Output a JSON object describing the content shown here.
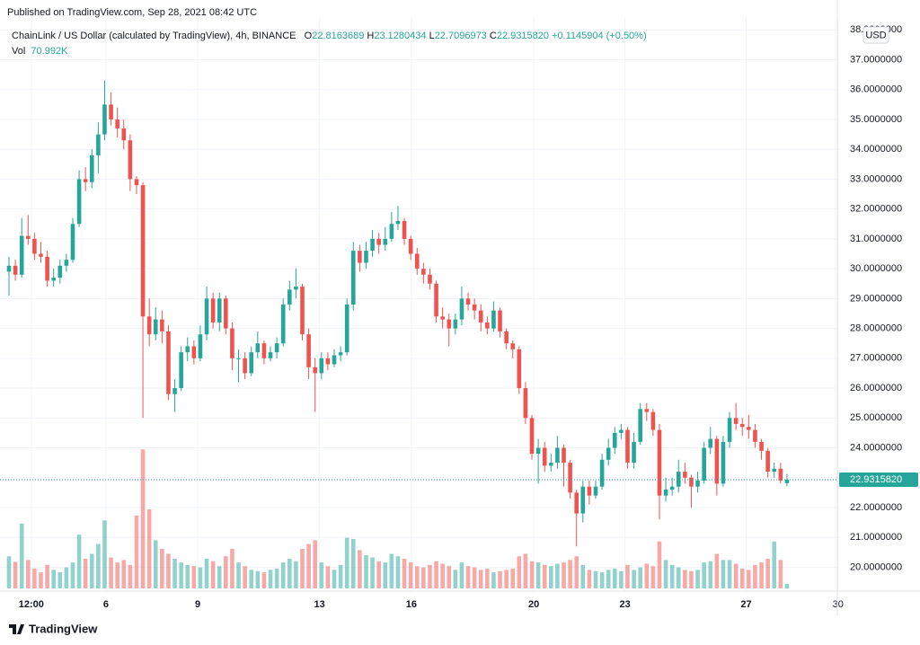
{
  "published": "Published on TradingView.com, Sep 28, 2021 08:42 UTC",
  "brand": "TradingView",
  "chart_data": {
    "type": "candlestick",
    "title": "ChainLink / US Dollar (calculated by TradingView), 4h, BINANCE",
    "ohlc_letters": [
      "O",
      "H",
      "L",
      "C"
    ],
    "close_label": "22.9315820",
    "change": "+0.1145904 (+0.50%)",
    "volume_title": "Vol",
    "volume_label": "70.992K",
    "currency": "USD",
    "up_color": "#26a69a",
    "down_color": "#ef5350",
    "grid": true,
    "open": [
      29.9,
      30.1,
      29.8,
      31.1,
      31.0,
      30.5,
      30.4,
      29.6,
      29.7,
      30.1,
      30.3,
      31.5,
      33.0,
      32.9,
      33.8,
      34.5,
      35.5,
      35.0,
      34.7,
      34.3,
      33.0,
      32.8,
      28.4,
      27.8,
      28.3,
      27.9,
      25.8,
      26.0,
      27.2,
      27.4,
      27.0,
      27.8,
      29.0,
      28.2,
      29.0,
      28.0,
      27.0,
      27.0,
      26.5,
      27.2,
      27.5,
      27.0,
      27.2,
      27.5,
      28.8,
      29.3,
      29.4,
      27.8,
      26.7,
      26.5,
      27.0,
      26.8,
      27.1,
      27.2,
      28.8,
      30.6,
      30.2,
      30.6,
      31.0,
      30.8,
      31.0,
      31.5,
      31.6,
      31.0,
      30.5,
      30.0,
      29.8,
      29.5,
      28.4,
      28.3,
      28.0,
      28.3,
      29.0,
      28.8,
      28.6,
      28.2,
      28.0,
      28.6,
      27.9,
      27.5,
      27.3,
      26.0,
      25.0,
      23.8,
      24.0,
      23.4,
      23.5,
      24.0,
      23.5,
      22.5,
      21.8,
      22.7,
      22.4,
      22.7,
      23.6,
      24.0,
      24.5,
      24.6,
      23.5,
      24.2,
      25.3,
      25.2,
      24.6,
      22.4,
      22.6,
      22.7,
      23.2,
      23.0,
      22.7,
      22.9,
      24.0,
      24.3,
      22.8,
      24.2,
      25.0,
      24.8,
      24.7,
      24.6,
      24.2,
      23.9,
      23.2,
      23.3,
      22.8163689
    ],
    "high": [
      30.4,
      30.3,
      31.7,
      31.8,
      31.2,
      30.9,
      30.6,
      30.0,
      30.3,
      30.5,
      31.7,
      33.3,
      33.4,
      34.0,
      34.9,
      36.3,
      35.9,
      35.4,
      35.0,
      34.5,
      33.1,
      32.9,
      29.0,
      28.7,
      28.6,
      28.1,
      26.3,
      27.4,
      27.7,
      27.6,
      28.1,
      29.4,
      29.2,
      29.2,
      29.1,
      28.2,
      27.3,
      27.2,
      27.4,
      27.9,
      27.6,
      27.4,
      27.7,
      29.0,
      29.6,
      30.0,
      29.5,
      28.0,
      27.0,
      27.2,
      27.2,
      27.3,
      27.4,
      29.0,
      30.9,
      30.8,
      30.9,
      31.3,
      31.2,
      31.4,
      31.9,
      32.1,
      31.7,
      31.1,
      30.7,
      30.2,
      30.0,
      29.6,
      28.7,
      28.5,
      28.5,
      29.4,
      29.2,
      29.0,
      28.8,
      28.4,
      28.9,
      28.7,
      28.0,
      27.6,
      27.4,
      26.2,
      25.1,
      24.3,
      24.2,
      23.8,
      24.4,
      24.1,
      23.6,
      22.6,
      22.9,
      22.9,
      22.9,
      23.8,
      24.3,
      24.7,
      24.8,
      24.7,
      24.5,
      25.5,
      25.5,
      25.3,
      24.8,
      23.0,
      23.0,
      23.6,
      23.5,
      23.1,
      23.2,
      24.2,
      24.7,
      24.4,
      24.4,
      25.2,
      25.5,
      25.0,
      25.1,
      24.8,
      24.3,
      24.0,
      23.5,
      23.5,
      23.1280434
    ],
    "low": [
      29.1,
      29.6,
      29.7,
      30.8,
      30.3,
      30.2,
      29.4,
      29.4,
      29.5,
      29.9,
      30.2,
      31.4,
      32.6,
      32.7,
      33.2,
      34.3,
      34.8,
      34.4,
      34.0,
      32.6,
      32.5,
      25.0,
      27.4,
      27.6,
      27.5,
      25.6,
      25.2,
      25.9,
      26.9,
      26.8,
      26.9,
      27.6,
      28.0,
      27.9,
      27.8,
      26.6,
      26.2,
      26.3,
      26.4,
      27.0,
      26.8,
      26.9,
      27.0,
      27.4,
      28.6,
      29.0,
      27.6,
      26.3,
      25.2,
      26.3,
      26.6,
      26.7,
      26.9,
      27.1,
      28.6,
      29.9,
      30.0,
      30.4,
      30.5,
      30.6,
      30.9,
      31.3,
      30.8,
      30.3,
      29.8,
      29.5,
      29.3,
      28.2,
      28.0,
      27.4,
      27.8,
      28.1,
      28.6,
      28.3,
      27.9,
      27.8,
      27.9,
      27.7,
      27.3,
      27.0,
      25.8,
      24.8,
      23.6,
      22.8,
      23.2,
      23.2,
      23.3,
      22.7,
      22.3,
      20.7,
      21.5,
      22.1,
      22.3,
      22.6,
      23.4,
      23.8,
      24.3,
      23.3,
      23.3,
      24.1,
      24.9,
      24.4,
      21.6,
      22.2,
      22.4,
      22.5,
      22.8,
      22.0,
      22.5,
      22.8,
      23.8,
      22.4,
      22.7,
      24.0,
      24.6,
      24.4,
      24.3,
      24.0,
      23.6,
      23.0,
      23.0,
      22.8,
      22.7096973
    ],
    "close": [
      30.1,
      29.8,
      31.1,
      31.0,
      30.5,
      30.4,
      29.6,
      29.7,
      30.1,
      30.3,
      31.5,
      33.0,
      32.9,
      33.8,
      34.5,
      35.5,
      35.0,
      34.7,
      34.3,
      33.0,
      32.8,
      28.4,
      27.8,
      28.3,
      27.9,
      25.8,
      26.0,
      27.2,
      27.4,
      27.0,
      27.8,
      29.0,
      28.2,
      29.0,
      28.0,
      27.0,
      27.0,
      26.5,
      27.2,
      27.5,
      27.0,
      27.2,
      27.5,
      28.8,
      29.3,
      29.4,
      27.8,
      26.7,
      26.5,
      27.0,
      26.8,
      27.1,
      27.2,
      28.8,
      30.6,
      30.2,
      30.6,
      31.0,
      30.8,
      31.0,
      31.5,
      31.6,
      31.0,
      30.5,
      30.0,
      29.8,
      29.5,
      28.4,
      28.3,
      28.0,
      28.3,
      29.0,
      28.8,
      28.6,
      28.2,
      28.0,
      28.6,
      27.9,
      27.5,
      27.3,
      26.0,
      25.0,
      23.8,
      24.0,
      23.4,
      23.5,
      24.0,
      23.5,
      22.5,
      21.8,
      22.7,
      22.4,
      22.7,
      23.6,
      24.0,
      24.5,
      24.6,
      23.5,
      24.2,
      25.3,
      25.2,
      24.6,
      22.4,
      22.6,
      22.7,
      23.2,
      23.0,
      22.7,
      22.9,
      24.0,
      24.3,
      22.8,
      24.2,
      25.0,
      24.8,
      24.7,
      24.6,
      24.2,
      23.9,
      23.2,
      23.3,
      22.9,
      22.931582
    ],
    "volume": [
      520000,
      430000,
      1050000,
      460000,
      320000,
      260000,
      380000,
      300000,
      260000,
      340000,
      420000,
      870000,
      480000,
      560000,
      720000,
      1100000,
      500000,
      420000,
      460000,
      380000,
      1180000,
      2250000,
      1280000,
      780000,
      640000,
      560000,
      480000,
      420000,
      380000,
      360000,
      340000,
      480000,
      440000,
      360000,
      520000,
      640000,
      420000,
      360000,
      300000,
      280000,
      260000,
      300000,
      320000,
      420000,
      480000,
      440000,
      640000,
      720000,
      780000,
      420000,
      360000,
      300000,
      380000,
      820000,
      800000,
      620000,
      540000,
      500000,
      440000,
      420000,
      560000,
      520000,
      480000,
      420000,
      360000,
      340000,
      380000,
      440000,
      400000,
      360000,
      300000,
      420000,
      360000,
      340000,
      300000,
      320000,
      260000,
      280000,
      300000,
      320000,
      520000,
      560000,
      440000,
      420000,
      380000,
      360000,
      400000,
      420000,
      460000,
      520000,
      380000,
      300000,
      280000,
      260000,
      300000,
      320000,
      280000,
      380000,
      300000,
      340000,
      400000,
      360000,
      760000,
      460000,
      380000,
      340000,
      300000,
      280000,
      300000,
      420000,
      440000,
      560000,
      460000,
      460000,
      400000,
      320000,
      300000,
      380000,
      420000,
      480000,
      760000,
      460000,
      70992
    ],
    "vlim": [
      0,
      2400000
    ],
    "xlim": [
      -1.41,
      129.9
    ],
    "xticks": [
      {
        "value": 3.5,
        "label": "12:00"
      },
      {
        "value": 15.2,
        "label": "6"
      },
      {
        "value": 29.6,
        "label": "9"
      },
      {
        "value": 48.7,
        "label": "13"
      },
      {
        "value": 63.1,
        "label": "16"
      },
      {
        "value": 82.3,
        "label": "20"
      },
      {
        "value": 96.6,
        "label": "23"
      },
      {
        "value": 115.6,
        "label": "27"
      },
      {
        "value": 130.0,
        "label": "30"
      }
    ],
    "ylim": [
      19.2,
      38.4
    ],
    "yticks": [
      {
        "value": 20,
        "label": "20.0000000"
      },
      {
        "value": 21,
        "label": "21.0000000"
      },
      {
        "value": 22,
        "label": "22.0000000"
      },
      {
        "value": 23,
        "label": "23.0000000"
      },
      {
        "value": 24,
        "label": "24.0000000"
      },
      {
        "value": 25,
        "label": "25.0000000"
      },
      {
        "value": 26,
        "label": "26.0000000"
      },
      {
        "value": 27,
        "label": "27.0000000"
      },
      {
        "value": 28,
        "label": "28.0000000"
      },
      {
        "value": 29,
        "label": "29.0000000"
      },
      {
        "value": 30,
        "label": "30.0000000"
      },
      {
        "value": 31,
        "label": "31.0000000"
      },
      {
        "value": 32,
        "label": "32.0000000"
      },
      {
        "value": 33,
        "label": "33.0000000"
      },
      {
        "value": 34,
        "label": "34.0000000"
      },
      {
        "value": 35,
        "label": "35.0000000"
      },
      {
        "value": 36,
        "label": "36.0000000"
      },
      {
        "value": 37,
        "label": "37.0000000"
      },
      {
        "value": 38,
        "label": "38.0000000"
      }
    ]
  }
}
